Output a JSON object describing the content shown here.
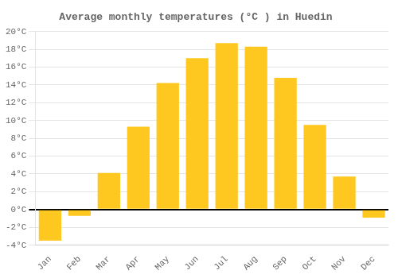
{
  "chart_data": {
    "type": "bar",
    "title": "Average monthly temperatures (°C ) in Huedin",
    "categories": [
      "Jan",
      "Feb",
      "Mar",
      "Apr",
      "May",
      "Jun",
      "Jul",
      "Aug",
      "Sep",
      "Oct",
      "Nov",
      "Dec"
    ],
    "values": [
      -3.5,
      -0.7,
      4.1,
      9.3,
      14.2,
      17.0,
      18.7,
      18.3,
      14.8,
      9.5,
      3.7,
      -0.9
    ],
    "color": "#FFC820",
    "ylim": [
      -4,
      20
    ],
    "yticks": [
      {
        "value": -4,
        "label": "-4°C"
      },
      {
        "value": -2,
        "label": "-2°C"
      },
      {
        "value": 0,
        "label": "0°C"
      },
      {
        "value": 2,
        "label": "2°C"
      },
      {
        "value": 4,
        "label": "4°C"
      },
      {
        "value": 6,
        "label": "6°C"
      },
      {
        "value": 8,
        "label": "8°C"
      },
      {
        "value": 10,
        "label": "10°C"
      },
      {
        "value": 12,
        "label": "12°C"
      },
      {
        "value": 14,
        "label": "14°C"
      },
      {
        "value": 16,
        "label": "16°C"
      },
      {
        "value": 18,
        "label": "18°C"
      },
      {
        "value": 20,
        "label": "20°C"
      }
    ],
    "grid": true
  }
}
